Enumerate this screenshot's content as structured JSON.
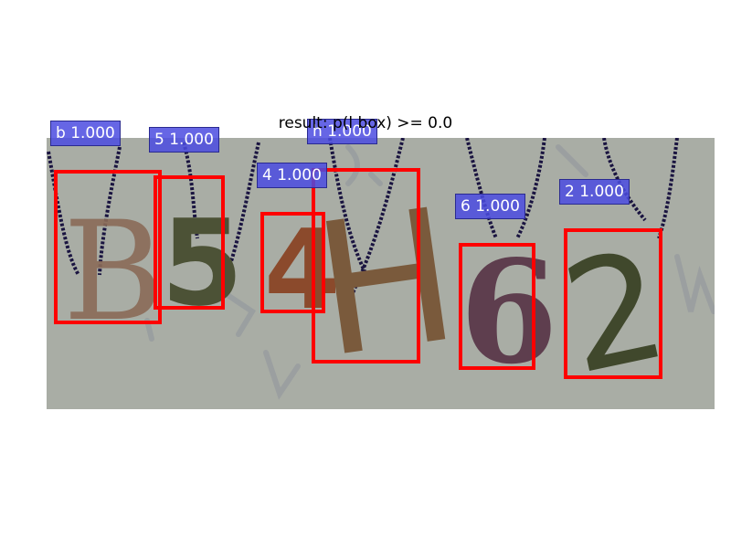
{
  "title": "result: p(l box) >= 0.0",
  "detections": [
    {
      "class": "b",
      "score": "1.000"
    },
    {
      "class": "5",
      "score": "1.000"
    },
    {
      "class": "h",
      "score": "1.000"
    },
    {
      "class": "4",
      "score": "1.000"
    },
    {
      "class": "6",
      "score": "1.000"
    },
    {
      "class": "2",
      "score": "1.000"
    }
  ],
  "colors": {
    "box": "#ff0000",
    "label_bg": "#4b4be1",
    "image_bg": "#a8aca4"
  }
}
